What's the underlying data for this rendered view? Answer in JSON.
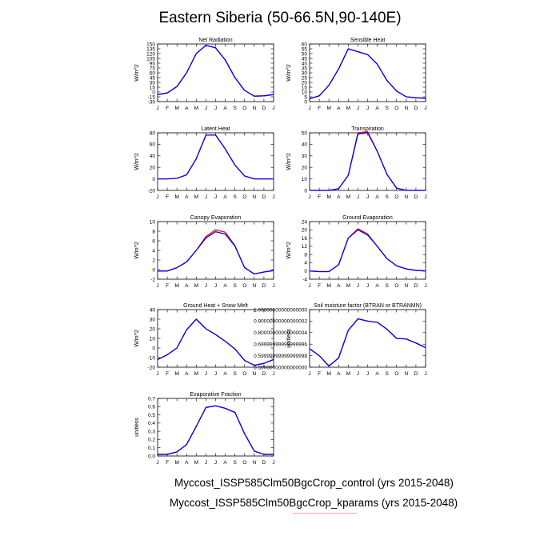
{
  "title": "Eastern Siberia (50-66.5N,90-140E)",
  "months": [
    "J",
    "F",
    "M",
    "A",
    "M",
    "J",
    "J",
    "A",
    "S",
    "O",
    "N",
    "D",
    "J"
  ],
  "colors": {
    "control": "#ff0000",
    "kparams": "#0000ff"
  },
  "legend": [
    {
      "label": "Myccost_ISSP585Clm50BgcCrop_control (yrs 2015-2048)",
      "color": "#ff0000"
    },
    {
      "label": "Myccost_ISSP585Clm50BgcCrop_kparams (yrs 2015-2048)",
      "color": "#0000ff"
    }
  ],
  "chart_data": [
    {
      "type": "line",
      "title": "Net Radiation",
      "ylabel": "W/m^2",
      "ylim": [
        -30,
        150
      ],
      "yticks": [
        -30,
        -15,
        0,
        15,
        30,
        45,
        60,
        75,
        90,
        105,
        120,
        135,
        150
      ],
      "series": [
        {
          "values": [
            -8,
            -3,
            17,
            60,
            120,
            146,
            138,
            100,
            45,
            5,
            -13,
            -12,
            -8
          ]
        },
        {
          "values": [
            -8,
            -3,
            17,
            60,
            120,
            146,
            138,
            100,
            45,
            5,
            -13,
            -12,
            -8
          ]
        }
      ]
    },
    {
      "type": "line",
      "title": "Sensible Heat",
      "ylabel": "W/m^2",
      "ylim": [
        0,
        60
      ],
      "yticks": [
        0,
        5,
        10,
        15,
        20,
        25,
        30,
        35,
        40,
        45,
        50,
        55,
        60
      ],
      "series": [
        {
          "values": [
            3,
            6,
            17,
            34,
            55,
            52,
            49,
            39,
            22,
            11,
            5,
            4,
            3.5
          ]
        },
        {
          "values": [
            3,
            6,
            17,
            34,
            55,
            52,
            49,
            39,
            22,
            11,
            5,
            4,
            3.5
          ]
        }
      ]
    },
    {
      "type": "line",
      "title": "Latent Heat",
      "ylabel": "W/m^2",
      "ylim": [
        -20,
        80
      ],
      "yticks": [
        -20,
        0,
        20,
        40,
        60,
        80
      ],
      "series": [
        {
          "values": [
            0,
            0,
            1,
            7,
            35,
            76,
            76,
            52,
            24,
            5,
            0,
            0,
            0
          ]
        },
        {
          "values": [
            0,
            0,
            1,
            7,
            35,
            76,
            76,
            52,
            24,
            5,
            0,
            0,
            0
          ]
        }
      ]
    },
    {
      "type": "line",
      "title": "Transpiration",
      "ylabel": "W/m^2",
      "ylim": [
        0,
        50
      ],
      "yticks": [
        0,
        10,
        20,
        30,
        40,
        50
      ],
      "series": [
        {
          "values": [
            0,
            0,
            0,
            1.5,
            13,
            50,
            51,
            34,
            14,
            2,
            0,
            0,
            0
          ]
        },
        {
          "values": [
            0,
            0,
            0,
            1.5,
            13,
            49,
            50,
            34,
            14,
            2,
            0,
            0,
            0
          ]
        }
      ]
    },
    {
      "type": "line",
      "title": "Canopy Evaporation",
      "ylabel": "W/m^2",
      "ylim": [
        -2,
        10
      ],
      "yticks": [
        -2,
        0,
        2,
        4,
        6,
        8,
        10
      ],
      "series": [
        {
          "values": [
            -0.3,
            -0.3,
            0.4,
            1.6,
            4,
            6.9,
            8.3,
            7.8,
            5,
            0.4,
            -0.9,
            -0.5,
            -0.2
          ]
        },
        {
          "values": [
            -0.3,
            -0.3,
            0.4,
            1.6,
            4,
            6.6,
            7.9,
            7.4,
            4.9,
            0.4,
            -0.9,
            -0.5,
            -0.2
          ]
        }
      ]
    },
    {
      "type": "line",
      "title": "Ground Evaporation",
      "ylabel": "W/m^2",
      "ylim": [
        -4,
        24
      ],
      "yticks": [
        -4,
        0,
        4,
        8,
        12,
        16,
        20,
        24
      ],
      "series": [
        {
          "values": [
            0,
            -0.3,
            -0.3,
            3,
            16,
            20.5,
            18,
            12,
            6,
            2.5,
            1,
            0.3,
            0
          ]
        },
        {
          "values": [
            0,
            -0.3,
            -0.3,
            3,
            16,
            20,
            17.5,
            12,
            6,
            2.5,
            1,
            0.3,
            0
          ]
        }
      ]
    },
    {
      "type": "line",
      "title": "Ground Heat + Snow Melt",
      "ylabel": "W/m^2",
      "ylim": [
        -20,
        40
      ],
      "yticks": [
        -20,
        -10,
        0,
        10,
        20,
        30,
        40
      ],
      "series": [
        {
          "values": [
            -12,
            -7,
            0,
            19,
            30,
            20,
            14,
            7,
            -1,
            -13,
            -18,
            -16,
            -12
          ]
        },
        {
          "values": [
            -12,
            -7,
            0,
            19,
            30,
            20,
            14,
            7,
            -1,
            -13,
            -18,
            -16,
            -12
          ]
        }
      ]
    },
    {
      "type": "line",
      "title": "Soil moisture factor (BTRAN or BTRANMN)",
      "ylabel": "unitless",
      "ylim": [
        0.5,
        1.0
      ],
      "yticks": [
        0.5,
        0.6,
        0.7,
        0.8,
        0.9,
        1.0
      ],
      "series": [
        {
          "values": [
            0.66,
            0.6,
            0.51,
            0.58,
            0.82,
            0.92,
            0.9,
            0.89,
            0.83,
            0.75,
            0.745,
            0.71,
            0.67
          ]
        },
        {
          "values": [
            0.66,
            0.6,
            0.51,
            0.58,
            0.82,
            0.92,
            0.9,
            0.89,
            0.83,
            0.75,
            0.745,
            0.71,
            0.67
          ]
        }
      ]
    },
    {
      "type": "line",
      "title": "Evaporative Fraction",
      "ylabel": "unitless",
      "ylim": [
        0,
        0.7
      ],
      "yticks": [
        0.0,
        0.1,
        0.2,
        0.3,
        0.4,
        0.5,
        0.6,
        0.7
      ],
      "series": [
        {
          "values": [
            0.02,
            0.02,
            0.05,
            0.14,
            0.36,
            0.59,
            0.61,
            0.58,
            0.53,
            0.27,
            0.06,
            0.02,
            0.02
          ]
        },
        {
          "values": [
            0.02,
            0.02,
            0.05,
            0.14,
            0.36,
            0.59,
            0.61,
            0.58,
            0.53,
            0.27,
            0.06,
            0.02,
            0.02
          ]
        }
      ]
    }
  ]
}
